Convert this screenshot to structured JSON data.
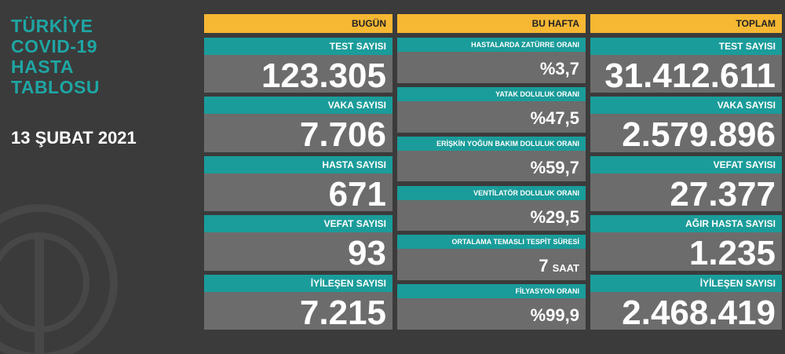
{
  "header": {
    "title": [
      "TÜRKİYE",
      "COVID-19",
      "HASTA",
      "TABLOSU"
    ],
    "date": "13 ŞUBAT 2021"
  },
  "columns": [
    {
      "title": "BUGÜN",
      "cards": [
        {
          "label": "TEST SAYISI",
          "value": "123.305"
        },
        {
          "label": "VAKA SAYISI",
          "value": "7.706"
        },
        {
          "label": "HASTA SAYISI",
          "value": "671"
        },
        {
          "label": "VEFAT SAYISI",
          "value": "93"
        },
        {
          "label": "İYİLEŞEN SAYISI",
          "value": "7.215"
        }
      ]
    },
    {
      "title": "BU HAFTA",
      "cards": [
        {
          "label": "HASTALARDA ZATÜRRE ORANI",
          "value": "%3,7"
        },
        {
          "label": "YATAK DOLULUK ORANI",
          "value": "%47,5"
        },
        {
          "label": "ERİŞKİN YOĞUN BAKIM DOLULUK ORANI",
          "value": "%59,7"
        },
        {
          "label": "VENTİLATÖR DOLULUK ORANI",
          "value": "%29,5"
        },
        {
          "label": "ORTALAMA TEMASLI TESPİT SÜRESİ",
          "value": "7",
          "unit": "SAAT"
        },
        {
          "label": "FİLYASYON ORANI",
          "value": "%99,9"
        }
      ]
    },
    {
      "title": "TOPLAM",
      "cards": [
        {
          "label": "TEST SAYISI",
          "value": "31.412.611"
        },
        {
          "label": "VAKA SAYISI",
          "value": "2.579.896"
        },
        {
          "label": "VEFAT SAYISI",
          "value": "27.377"
        },
        {
          "label": "AĞIR HASTA SAYISI",
          "value": "1.235"
        },
        {
          "label": "İYİLEŞEN SAYISI",
          "value": "2.468.419"
        }
      ]
    }
  ]
}
